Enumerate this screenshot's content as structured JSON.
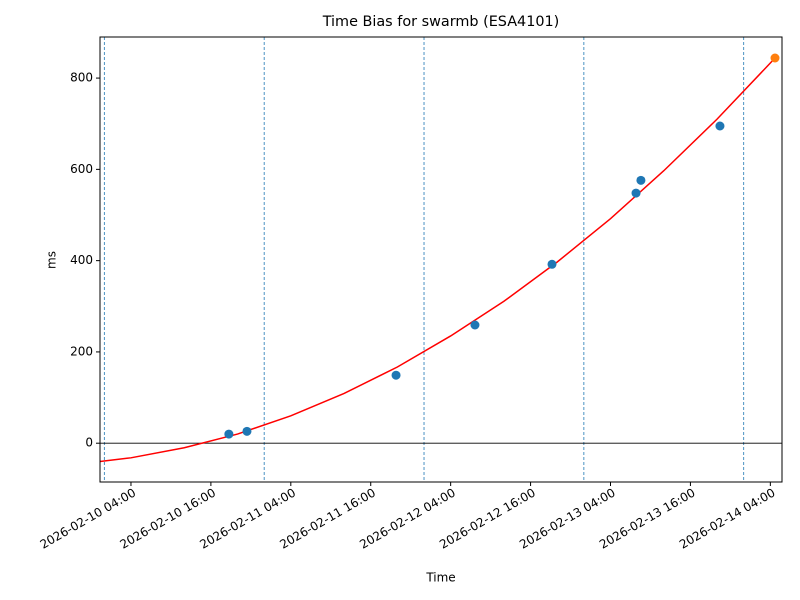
{
  "chart_data": {
    "type": "scatter",
    "title": "Time Bias for swarmb (ESA4101)",
    "x_label": "Time",
    "y_label": "ms",
    "xlim": [
      "2026-02-09 23:21",
      "2026-02-14 05:45"
    ],
    "ylim": [
      -85,
      890
    ],
    "xticks": [
      "2026-02-10 04:00",
      "2026-02-10 16:00",
      "2026-02-11 04:00",
      "2026-02-11 16:00",
      "2026-02-12 04:00",
      "2026-02-12 16:00",
      "2026-02-13 04:00",
      "2026-02-13 16:00",
      "2026-02-14 04:00"
    ],
    "yticks": [
      0,
      200,
      400,
      600,
      800
    ],
    "vlines": [
      "2026-02-10 00:00",
      "2026-02-11 00:00",
      "2026-02-12 00:00",
      "2026-02-13 00:00",
      "2026-02-14 00:00"
    ],
    "vline_color": "#1f77b4",
    "hline": 0,
    "series": [
      {
        "type": "line",
        "color": "#ff0000",
        "x": [
          "2026-02-09 23:21",
          "2026-02-10 04:00",
          "2026-02-10 12:00",
          "2026-02-10 20:00",
          "2026-02-11 04:00",
          "2026-02-11 12:00",
          "2026-02-11 20:00",
          "2026-02-12 04:00",
          "2026-02-12 12:00",
          "2026-02-12 20:00",
          "2026-02-13 04:00",
          "2026-02-13 12:00",
          "2026-02-13 20:00",
          "2026-02-14 04:00",
          "2026-02-14 04:42"
        ],
        "values": [
          -40,
          -32,
          -10,
          20,
          60,
          109,
          167,
          235,
          311,
          397,
          492,
          597,
          710,
          833,
          844
        ]
      },
      {
        "type": "scatter",
        "color": "#1f77b4",
        "x": [
          "2026-02-10 18:42",
          "2026-02-10 21:25",
          "2026-02-11 19:48",
          "2026-02-12 07:39",
          "2026-02-12 19:13",
          "2026-02-13 07:50",
          "2026-02-13 08:34",
          "2026-02-13 20:26"
        ],
        "values": [
          20,
          26,
          149,
          259,
          392,
          548,
          576,
          695
        ]
      },
      {
        "type": "scatter",
        "color": "#ff7f0e",
        "x": [
          "2026-02-14 04:42"
        ],
        "values": [
          844
        ]
      }
    ]
  }
}
